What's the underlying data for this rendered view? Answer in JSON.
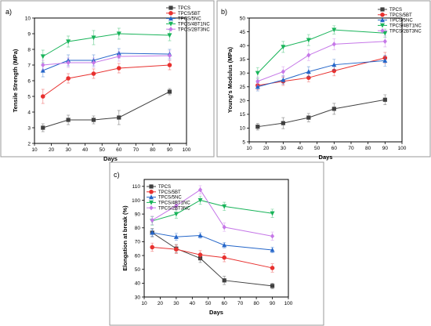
{
  "chart_data": [
    {
      "panel_label": "a)",
      "type": "line",
      "xlabel": "Days",
      "ylabel": "Tensile Strength (MPa)",
      "xlim": [
        10,
        100
      ],
      "ylim": [
        2,
        10
      ],
      "xticks": [
        10,
        20,
        30,
        40,
        50,
        60,
        70,
        80,
        90,
        100
      ],
      "yticks": [
        2,
        3,
        4,
        5,
        6,
        7,
        8,
        9,
        10
      ],
      "legend": "top-right",
      "x": [
        15,
        30,
        45,
        60,
        90
      ],
      "series": [
        {
          "name": "TPCS",
          "color": "#404040",
          "marker": "square",
          "values": [
            3.0,
            3.5,
            3.5,
            3.65,
            5.3
          ],
          "errors": [
            0.25,
            0.3,
            0.25,
            0.45,
            0.2
          ]
        },
        {
          "name": "TPCS/5BT",
          "color": "#e8312f",
          "marker": "circle",
          "values": [
            5.0,
            6.15,
            6.45,
            6.8,
            7.0
          ],
          "errors": [
            0.45,
            0.3,
            0.3,
            0.3,
            0.3
          ]
        },
        {
          "name": "TPCS/5NC",
          "color": "#2466c9",
          "marker": "triangle",
          "values": [
            6.65,
            7.3,
            7.3,
            7.75,
            7.7
          ],
          "errors": [
            0.4,
            0.35,
            0.35,
            0.3,
            0.3
          ]
        },
        {
          "name": "TPCS/4BT1NC",
          "color": "#19b45a",
          "marker": "triangle-down",
          "values": [
            7.55,
            8.5,
            8.75,
            9.0,
            8.9
          ],
          "errors": [
            0.4,
            0.35,
            0.45,
            0.35,
            0.35
          ]
        },
        {
          "name": "TPCS/2BT3NC",
          "color": "#c678e8",
          "marker": "diamond",
          "values": [
            7.0,
            7.15,
            7.15,
            7.55,
            7.6
          ],
          "errors": [
            0.3,
            0.3,
            0.3,
            0.3,
            0.3
          ]
        }
      ]
    },
    {
      "panel_label": "b)",
      "type": "line",
      "xlabel": "Days",
      "ylabel": "Young's Modulus (MPa)",
      "xlim": [
        10,
        100
      ],
      "ylim": [
        5,
        50
      ],
      "xticks": [
        10,
        20,
        30,
        40,
        50,
        60,
        70,
        80,
        90,
        100
      ],
      "yticks": [
        5,
        10,
        15,
        20,
        25,
        30,
        35,
        40,
        45,
        50
      ],
      "legend": "top-right",
      "x": [
        15,
        30,
        45,
        60,
        90
      ],
      "series": [
        {
          "name": "TPCS",
          "color": "#404040",
          "marker": "square",
          "values": [
            10.5,
            11.8,
            13.8,
            17.0,
            20.3
          ],
          "errors": [
            1.2,
            2.0,
            1.5,
            2.0,
            1.8
          ]
        },
        {
          "name": "TPCS/5BT",
          "color": "#e8312f",
          "marker": "circle",
          "values": [
            25.5,
            27.0,
            28.3,
            30.8,
            35.5
          ],
          "errors": [
            1.5,
            1.5,
            1.5,
            1.8,
            2.0
          ]
        },
        {
          "name": "TPCS/5NC",
          "color": "#2466c9",
          "marker": "triangle",
          "values": [
            25.0,
            27.5,
            30.5,
            33.0,
            34.5
          ],
          "errors": [
            1.5,
            1.5,
            1.8,
            2.0,
            2.0
          ]
        },
        {
          "name": "TPCS/4BT1NC",
          "color": "#19b45a",
          "marker": "triangle-down",
          "values": [
            30.0,
            39.5,
            42.0,
            45.7,
            44.5
          ],
          "errors": [
            2.0,
            2.0,
            2.0,
            1.5,
            1.5
          ]
        },
        {
          "name": "TPCS/2BT3NC",
          "color": "#c678e8",
          "marker": "diamond",
          "values": [
            27.0,
            30.5,
            36.5,
            40.5,
            41.5
          ],
          "errors": [
            1.5,
            1.8,
            2.0,
            2.0,
            2.0
          ]
        }
      ]
    },
    {
      "panel_label": "c)",
      "type": "line",
      "xlabel": "Days",
      "ylabel": "Elongation at break (%)",
      "xlim": [
        10,
        100
      ],
      "ylim": [
        30,
        115
      ],
      "xticks": [
        10,
        20,
        30,
        40,
        50,
        60,
        70,
        80,
        90,
        100
      ],
      "yticks": [
        30,
        40,
        50,
        60,
        70,
        80,
        90,
        100,
        110
      ],
      "legend": "top-left",
      "x": [
        15,
        30,
        45,
        60,
        90
      ],
      "series": [
        {
          "name": "TPCS",
          "color": "#404040",
          "marker": "square",
          "values": [
            76.5,
            65.0,
            58.0,
            42.0,
            38.0
          ],
          "errors": [
            3.0,
            3.0,
            3.0,
            3.0,
            2.0
          ]
        },
        {
          "name": "TPCS/5BT",
          "color": "#e8312f",
          "marker": "circle",
          "values": [
            66.0,
            64.5,
            60.5,
            58.5,
            51.0
          ],
          "errors": [
            3.0,
            3.0,
            3.0,
            3.0,
            3.0
          ]
        },
        {
          "name": "TPCS/5NC",
          "color": "#2466c9",
          "marker": "triangle",
          "values": [
            76.5,
            73.5,
            74.5,
            67.5,
            64.0
          ],
          "errors": [
            2.5,
            2.5,
            2.0,
            2.0,
            2.0
          ]
        },
        {
          "name": "TPCS/4BT1NC",
          "color": "#19b45a",
          "marker": "triangle-down",
          "values": [
            85.0,
            90.0,
            100.0,
            95.5,
            90.5
          ],
          "errors": [
            3.0,
            3.0,
            3.0,
            3.0,
            3.0
          ]
        },
        {
          "name": "TPCS/2BT3NC",
          "color": "#c678e8",
          "marker": "diamond",
          "values": [
            85.5,
            96.0,
            107.5,
            80.5,
            74.0
          ],
          "errors": [
            3.0,
            3.0,
            3.0,
            3.0,
            3.0
          ]
        }
      ]
    }
  ]
}
